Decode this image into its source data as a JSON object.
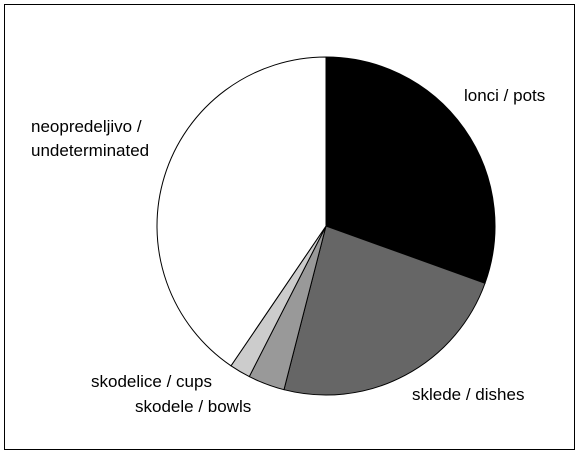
{
  "chart_data": {
    "type": "pie",
    "start_angle": "12 o'clock",
    "direction": "clockwise",
    "slices": [
      {
        "label": "lonci / pots",
        "value": 30.5,
        "color": "#000000"
      },
      {
        "label": "sklede / dishes",
        "value": 23.5,
        "color": "#666666"
      },
      {
        "label": "skodele / bowls",
        "value": 3.5,
        "color": "#999999"
      },
      {
        "label": "skodelice / cups",
        "value": 2.0,
        "color": "#cccccc"
      },
      {
        "label": "neopredeljivo / undeterminated",
        "value": 40.5,
        "color": "#ffffff"
      }
    ],
    "labels": {
      "pots": "lonci / pots",
      "dishes": "sklede / dishes",
      "bowls": "skodele / bowls",
      "cups": "skodelice / cups",
      "undetermined_line1": "neopredeljivo /",
      "undetermined_line2": "undeterminated"
    },
    "legend": "none"
  }
}
